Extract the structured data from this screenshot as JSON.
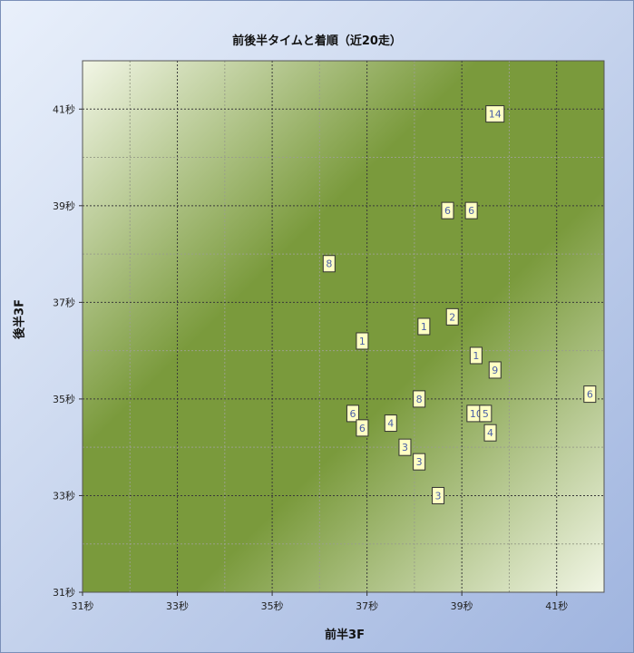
{
  "chart_data": {
    "type": "scatter",
    "title": "前後半タイムと着順（近20走）",
    "xlabel": "前半3F",
    "ylabel": "後半3F",
    "xlim": [
      31,
      42
    ],
    "ylim": [
      31,
      42
    ],
    "x_ticks": [
      {
        "value": 31,
        "label": "31秒"
      },
      {
        "value": 33,
        "label": "33秒"
      },
      {
        "value": 35,
        "label": "35秒"
      },
      {
        "value": 37,
        "label": "37秒"
      },
      {
        "value": 39,
        "label": "39秒"
      },
      {
        "value": 41,
        "label": "41秒"
      }
    ],
    "y_ticks": [
      {
        "value": 31,
        "label": "31秒"
      },
      {
        "value": 33,
        "label": "33秒"
      },
      {
        "value": 35,
        "label": "35秒"
      },
      {
        "value": 37,
        "label": "37秒"
      },
      {
        "value": 39,
        "label": "39秒"
      },
      {
        "value": 41,
        "label": "41秒"
      }
    ],
    "grid": true,
    "points": [
      {
        "x": 39.7,
        "y": 40.9,
        "label": "14"
      },
      {
        "x": 38.7,
        "y": 38.9,
        "label": "6"
      },
      {
        "x": 39.2,
        "y": 38.9,
        "label": "6"
      },
      {
        "x": 36.2,
        "y": 37.8,
        "label": "8"
      },
      {
        "x": 38.8,
        "y": 36.7,
        "label": "2"
      },
      {
        "x": 38.2,
        "y": 36.5,
        "label": "1"
      },
      {
        "x": 36.9,
        "y": 36.2,
        "label": "1"
      },
      {
        "x": 39.3,
        "y": 35.9,
        "label": "1"
      },
      {
        "x": 39.7,
        "y": 35.6,
        "label": "9"
      },
      {
        "x": 41.7,
        "y": 35.1,
        "label": "6"
      },
      {
        "x": 38.1,
        "y": 35.0,
        "label": "8"
      },
      {
        "x": 36.7,
        "y": 34.7,
        "label": "6"
      },
      {
        "x": 36.9,
        "y": 34.4,
        "label": "6"
      },
      {
        "x": 37.5,
        "y": 34.5,
        "label": "4"
      },
      {
        "x": 39.3,
        "y": 34.7,
        "label": "10"
      },
      {
        "x": 39.5,
        "y": 34.7,
        "label": "5"
      },
      {
        "x": 39.6,
        "y": 34.3,
        "label": "4"
      },
      {
        "x": 37.8,
        "y": 34.0,
        "label": "3"
      },
      {
        "x": 38.1,
        "y": 33.7,
        "label": "3"
      },
      {
        "x": 38.5,
        "y": 33.0,
        "label": "3"
      }
    ],
    "colors": {
      "plot_dark": "#7a9a3c",
      "plot_light": "#f2f6e6",
      "marker_fill": "#ffffc4",
      "marker_border": "#333333",
      "marker_text": "#4a5fa8"
    }
  }
}
